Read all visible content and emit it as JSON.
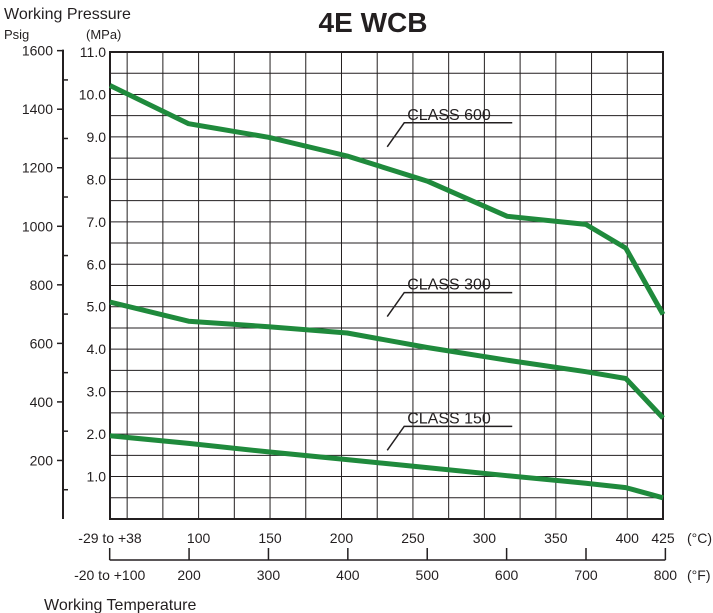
{
  "chart_data": {
    "type": "line",
    "title": "4E WCB",
    "y_axis_title": "Working Pressure",
    "y_unit_psig": "Psig",
    "y_unit_mpa": "(MPa)",
    "x_axis_title": "Working Temperature",
    "x_unit_c": "(°C)",
    "x_unit_f": "(°F)",
    "ylim_mpa": [
      0,
      11.0
    ],
    "xlim_c": [
      38,
      425
    ],
    "grid": true,
    "mpa_ticks": [
      "1.0",
      "2.0",
      "3.0",
      "4.0",
      "5.0",
      "6.0",
      "7.0",
      "8.0",
      "9.0",
      "10.0",
      "11.0"
    ],
    "psig_ticks": [
      {
        "label": "200",
        "psig": 200
      },
      {
        "label": "400",
        "psig": 400
      },
      {
        "label": "600",
        "psig": 600
      },
      {
        "label": "800",
        "psig": 800
      },
      {
        "label": "1000",
        "psig": 1000
      },
      {
        "label": "1200",
        "psig": 1200
      },
      {
        "label": "1400",
        "psig": 1400
      },
      {
        "label": "1600",
        "psig": 1600
      }
    ],
    "c_ticks": [
      {
        "label": "-29 to +38",
        "c": 38
      },
      {
        "label": "100",
        "c": 100
      },
      {
        "label": "150",
        "c": 150
      },
      {
        "label": "200",
        "c": 200
      },
      {
        "label": "250",
        "c": 250
      },
      {
        "label": "300",
        "c": 300
      },
      {
        "label": "350",
        "c": 350
      },
      {
        "label": "400",
        "c": 400
      },
      {
        "label": "425",
        "c": 425
      }
    ],
    "f_ticks": [
      {
        "label": "-20 to +100",
        "f": 100
      },
      {
        "label": "200",
        "f": 200
      },
      {
        "label": "300",
        "f": 300
      },
      {
        "label": "400",
        "f": 400
      },
      {
        "label": "500",
        "f": 500
      },
      {
        "label": "600",
        "f": 600
      },
      {
        "label": "700",
        "f": 700
      },
      {
        "label": "800",
        "f": 800
      }
    ],
    "series": [
      {
        "name": "CLASS 600",
        "color": "#1f8a3c",
        "x": [
          38,
          93,
          149,
          204,
          260,
          316,
          371,
          399,
          425
        ],
        "y": [
          10.21,
          9.31,
          8.99,
          8.55,
          7.96,
          7.13,
          6.94,
          6.38,
          4.82
        ],
        "label_c": 260,
        "label_mpa": 9.05
      },
      {
        "name": "CLASS 300",
        "color": "#1f8a3c",
        "x": [
          38,
          93,
          149,
          204,
          260,
          316,
          371,
          399,
          425
        ],
        "y": [
          5.11,
          4.66,
          4.53,
          4.38,
          4.04,
          3.74,
          3.47,
          3.31,
          2.38
        ],
        "label_c": 260,
        "label_mpa": 5.05
      },
      {
        "name": "CLASS 150",
        "color": "#1f8a3c",
        "x": [
          38,
          93,
          149,
          204,
          260,
          316,
          371,
          399,
          425
        ],
        "y": [
          1.96,
          1.78,
          1.58,
          1.4,
          1.21,
          1.02,
          0.84,
          0.74,
          0.5
        ],
        "label_c": 260,
        "label_mpa": 1.9
      }
    ]
  }
}
